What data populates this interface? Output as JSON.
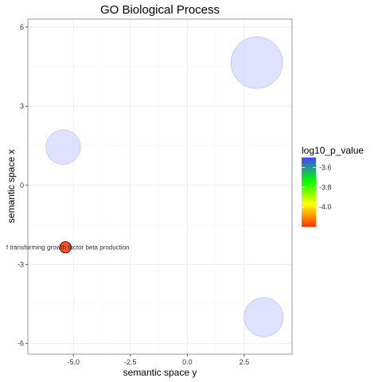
{
  "chart_data": {
    "type": "scatter",
    "title": "GO Biological Process",
    "xlabel": "semantic space y",
    "ylabel": "semantic space x",
    "xlim": [
      -7.0,
      4.6
    ],
    "ylim": [
      -6.4,
      6.3
    ],
    "x_ticks": [
      -5.0,
      -2.5,
      0.0,
      2.5
    ],
    "x_tick_labels": [
      "-5.0",
      "-2.5",
      "0.0",
      "2.5"
    ],
    "y_ticks": [
      -6,
      -3,
      0,
      3,
      6
    ],
    "y_tick_labels": [
      "-6",
      "-3",
      "0",
      "3",
      "6"
    ],
    "grid": true,
    "color_scale": {
      "name": "log10_p_value",
      "range": [
        -4.2,
        -3.5
      ],
      "ticks": [
        -3.6,
        -3.8,
        -4.0
      ],
      "tick_labels": [
        "-3.6",
        "-3.8",
        "-4.0"
      ],
      "colors": [
        "#ff3300",
        "#ffff00",
        "#00ff00",
        "#4444ff"
      ],
      "legend_position": "right"
    },
    "points": [
      {
        "x": 3.05,
        "y": 4.65,
        "size": 1.0,
        "log10_p_value": -3.55,
        "label": ""
      },
      {
        "x": -5.45,
        "y": 1.45,
        "size": 0.67,
        "log10_p_value": -3.55,
        "label": ""
      },
      {
        "x": 3.35,
        "y": -5.0,
        "size": 0.76,
        "log10_p_value": -3.55,
        "label": ""
      },
      {
        "x": -5.35,
        "y": -2.35,
        "size": 0.22,
        "log10_p_value": -4.2,
        "label": "f transforming growth factor beta production"
      }
    ]
  }
}
